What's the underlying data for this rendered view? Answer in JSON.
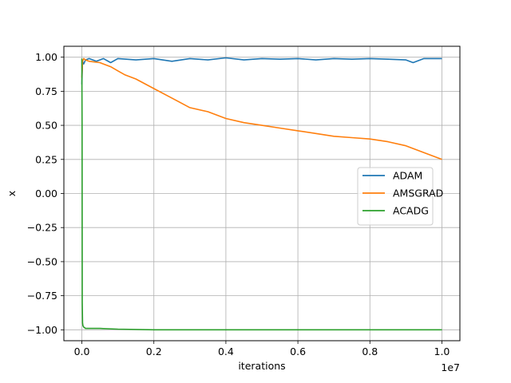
{
  "chart_data": {
    "type": "line",
    "title": "",
    "xlabel": "iterations",
    "ylabel": "x",
    "x_offset_label": "1e7",
    "xlim": [
      -0.05,
      1.05
    ],
    "ylim": [
      -1.08,
      1.08
    ],
    "x_ticks": [
      0.0,
      0.2,
      0.4,
      0.6,
      0.8,
      1.0
    ],
    "x_tick_labels": [
      "0.0",
      "0.2",
      "0.4",
      "0.6",
      "0.8",
      "1.0"
    ],
    "y_ticks": [
      1.0,
      0.75,
      0.5,
      0.25,
      0.0,
      -0.25,
      -0.5,
      -0.75,
      -1.0
    ],
    "y_tick_labels": [
      "1.00",
      "0.75",
      "0.50",
      "0.25",
      "0.00",
      "−0.25",
      "−0.50",
      "−0.75",
      "−1.00"
    ],
    "grid": true,
    "legend_position": "center-right",
    "series": [
      {
        "name": "ADAM",
        "color": "#1f77b4",
        "x": [
          0.0,
          0.002,
          0.005,
          0.01,
          0.02,
          0.04,
          0.06,
          0.08,
          0.1,
          0.15,
          0.2,
          0.25,
          0.3,
          0.35,
          0.4,
          0.45,
          0.5,
          0.55,
          0.6,
          0.65,
          0.7,
          0.75,
          0.8,
          0.85,
          0.9,
          0.92,
          0.95,
          1.0
        ],
        "y": [
          0.8,
          0.97,
          0.95,
          0.98,
          0.99,
          0.97,
          0.99,
          0.96,
          0.99,
          0.98,
          0.99,
          0.97,
          0.99,
          0.98,
          0.995,
          0.98,
          0.99,
          0.985,
          0.99,
          0.98,
          0.99,
          0.985,
          0.99,
          0.985,
          0.98,
          0.96,
          0.99,
          0.99
        ]
      },
      {
        "name": "AMSGRAD",
        "color": "#ff7f0e",
        "x": [
          0.0,
          0.002,
          0.005,
          0.01,
          0.02,
          0.05,
          0.08,
          0.1,
          0.12,
          0.15,
          0.2,
          0.25,
          0.3,
          0.35,
          0.4,
          0.45,
          0.5,
          0.55,
          0.6,
          0.65,
          0.7,
          0.75,
          0.8,
          0.85,
          0.9,
          0.95,
          1.0
        ],
        "y": [
          0.85,
          0.97,
          0.99,
          0.98,
          0.97,
          0.96,
          0.93,
          0.9,
          0.87,
          0.84,
          0.77,
          0.7,
          0.63,
          0.6,
          0.55,
          0.52,
          0.5,
          0.48,
          0.46,
          0.44,
          0.42,
          0.41,
          0.4,
          0.38,
          0.35,
          0.3,
          0.25
        ]
      },
      {
        "name": "ACADG",
        "color": "#2ca02c",
        "x": [
          0.0,
          0.0005,
          0.001,
          0.002,
          0.003,
          0.005,
          0.008,
          0.01,
          0.02,
          0.05,
          0.1,
          0.2,
          0.4,
          0.6,
          0.8,
          1.0
        ],
        "y": [
          0.99,
          0.5,
          -0.8,
          -0.95,
          -0.97,
          -0.98,
          -0.985,
          -0.99,
          -0.99,
          -0.99,
          -0.995,
          -1.0,
          -1.0,
          -1.0,
          -1.0,
          -1.0
        ]
      }
    ]
  }
}
